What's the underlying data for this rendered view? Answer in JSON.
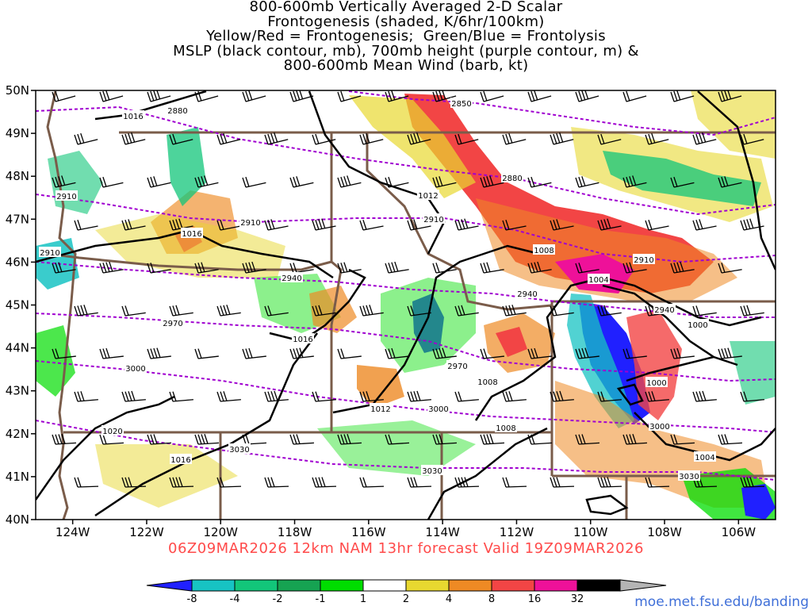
{
  "title_lines": [
    "800-600mb Vertically Averaged 2-D Scalar",
    "Frontogenesis (shaded, K/6hr/100km)",
    "Yellow/Red = Frontogenesis;  Green/Blue = Frontolysis",
    "MSLP (black contour, mb), 700mb height (purple contour, m) &",
    "800-600mb Mean Wind (barb, kt)"
  ],
  "footer": "06Z09MAR2026 12km NAM 13hr forecast Valid 19Z09MAR2026",
  "credit": "moe.met.fsu.edu/banding",
  "lat_labels": [
    "50N",
    "49N",
    "48N",
    "47N",
    "46N",
    "45N",
    "44N",
    "43N",
    "42N",
    "41N",
    "40N"
  ],
  "lon_labels": [
    "124W",
    "122W",
    "120W",
    "118W",
    "116W",
    "114W",
    "112W",
    "110W",
    "108W",
    "106W"
  ],
  "colorbar": {
    "levels": [
      "-8",
      "-4",
      "-2",
      "-1",
      "1",
      "2",
      "4",
      "8",
      "16",
      "32"
    ],
    "colors": [
      "#2020ff",
      "#17c3c3",
      "#12c67a",
      "#16a352",
      "#00dd00",
      "#ffffff",
      "#e8d830",
      "#ee8a24",
      "#f24545",
      "#ee1199",
      "#000000",
      "#b4b4b4"
    ]
  },
  "map": {
    "domain": {
      "lon_min": -125,
      "lon_max": -105,
      "lat_min": 40,
      "lat_max": 50
    },
    "colors": {
      "mslp": "#000000",
      "height700": "#a000d0",
      "borders": "#7a5c4a",
      "barbs": "#000000"
    },
    "mslp_labels": [
      "1016",
      "1016",
      "1012",
      "1016",
      "1008",
      "1004",
      "1000",
      "1000",
      "1008",
      "1008",
      "1020",
      "1016",
      "1012",
      "1004"
    ],
    "height_labels": [
      "2850",
      "2880",
      "2880",
      "2910",
      "2910",
      "2910",
      "2910",
      "2910",
      "2940",
      "2940",
      "2940",
      "2970",
      "2970",
      "3000",
      "3000",
      "3000",
      "3030",
      "3030",
      "3030"
    ]
  }
}
